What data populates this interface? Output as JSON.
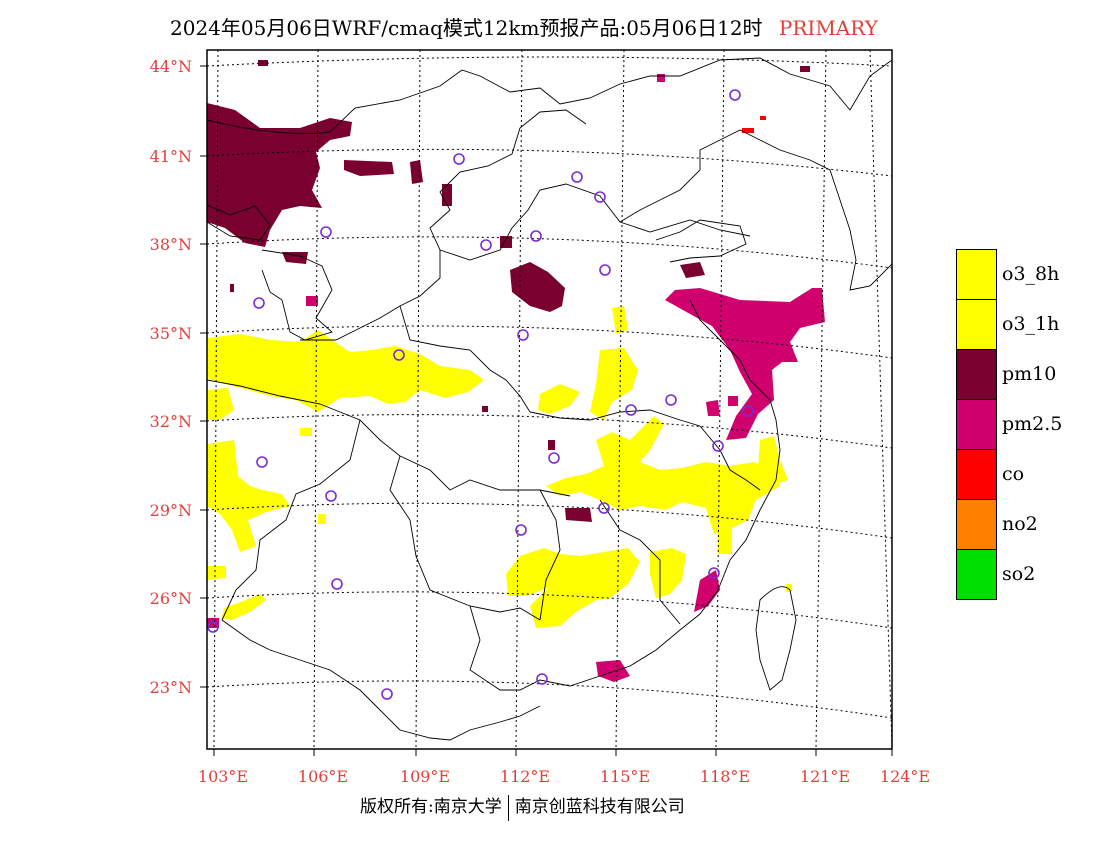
{
  "header": {
    "title": "2024年05月06日WRF/cmaq模式12km预报产品:05月06日12时",
    "tag": "PRIMARY"
  },
  "map": {
    "lat_labels": [
      "44°N",
      "41°N",
      "38°N",
      "35°N",
      "32°N",
      "29°N",
      "26°N",
      "23°N"
    ],
    "lon_labels": [
      "103°E",
      "106°E",
      "109°E",
      "112°E",
      "115°E",
      "118°E",
      "121°E",
      "124°E"
    ],
    "colors": {
      "o3_8h": "#ffff00",
      "o3_1h": "#ffff00",
      "pm10": "#7a0030",
      "pm2_5": "#d1006f",
      "co": "#ff0000",
      "no2": "#ff8000",
      "so2": "#00e000",
      "station_marker": "#7a2bd6",
      "coastline": "#000000"
    }
  },
  "legend": {
    "items": [
      {
        "label": "o3_8h",
        "color": "#ffff00"
      },
      {
        "label": "o3_1h",
        "color": "#ffff00"
      },
      {
        "label": "pm10",
        "color": "#7a0030"
      },
      {
        "label": "pm2.5",
        "color": "#d1006f"
      },
      {
        "label": "co",
        "color": "#ff0000"
      },
      {
        "label": "no2",
        "color": "#ff8000"
      },
      {
        "label": "so2",
        "color": "#00e000"
      }
    ]
  },
  "footer": {
    "copyright": "版权所有:南京大学",
    "company": "南京创蓝科技有限公司"
  }
}
